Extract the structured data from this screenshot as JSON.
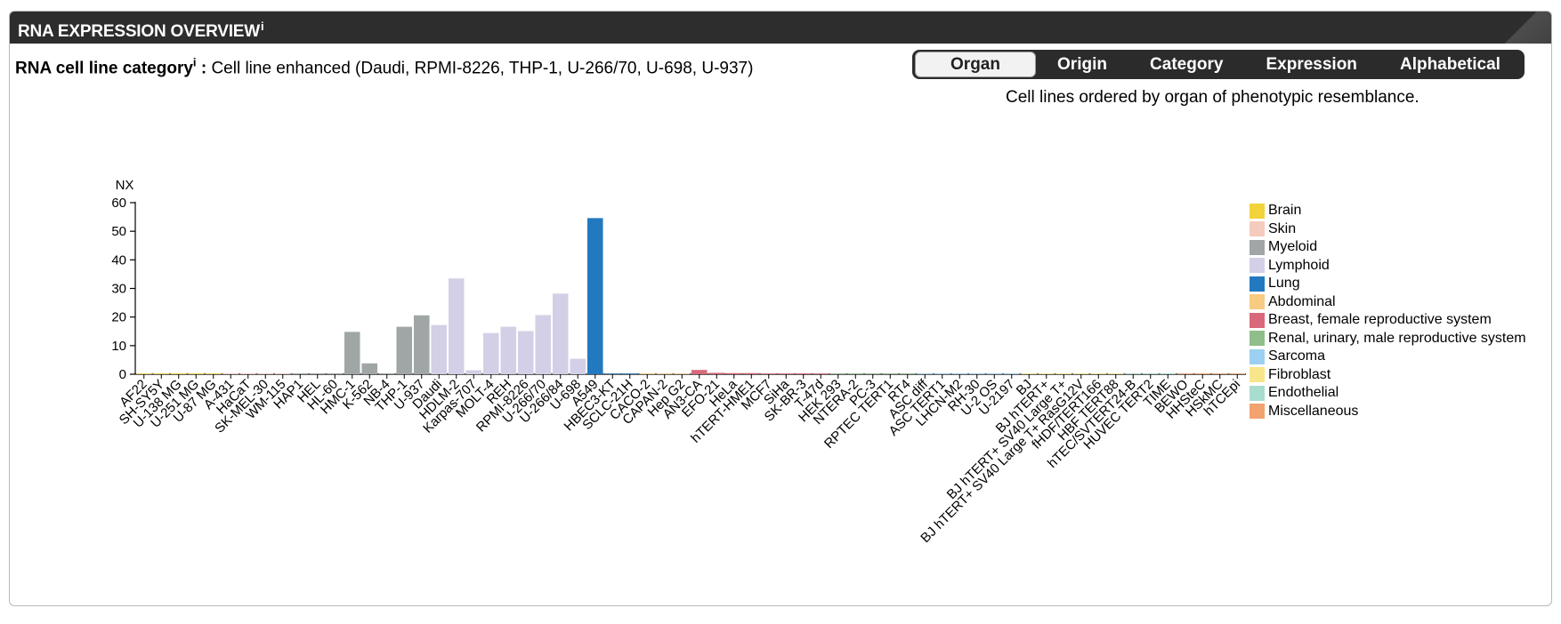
{
  "panel": {
    "title": "RNA EXPRESSION OVERVIEW",
    "title_info": "i"
  },
  "category": {
    "label": "RNA cell line category",
    "info": "i",
    "separator": " : ",
    "value": "Cell line enhanced (Daudi, RPMI-8226, THP-1, U-266/70, U-698, U-937)"
  },
  "tabs": [
    {
      "label": "Organ",
      "active": true
    },
    {
      "label": "Origin",
      "active": false
    },
    {
      "label": "Category",
      "active": false
    },
    {
      "label": "Expression",
      "active": false
    },
    {
      "label": "Alphabetical",
      "active": false
    }
  ],
  "caption": "Cell lines ordered by organ of phenotypic resemblance.",
  "legend": [
    {
      "name": "Brain",
      "color": "#f2d33a"
    },
    {
      "name": "Skin",
      "color": "#f4cbbd"
    },
    {
      "name": "Myeloid",
      "color": "#a0a6a6"
    },
    {
      "name": "Lymphoid",
      "color": "#d3cfe6"
    },
    {
      "name": "Lung",
      "color": "#2279c0"
    },
    {
      "name": "Abdominal",
      "color": "#f8cb82"
    },
    {
      "name": "Breast, female reproductive system",
      "color": "#d9687a"
    },
    {
      "name": "Renal, urinary, male reproductive system",
      "color": "#90be8a"
    },
    {
      "name": "Sarcoma",
      "color": "#9bd0f0"
    },
    {
      "name": "Fibroblast",
      "color": "#f7e68a"
    },
    {
      "name": "Endothelial",
      "color": "#a8dccf"
    },
    {
      "name": "Miscellaneous",
      "color": "#f2a26e"
    }
  ],
  "chart_data": {
    "type": "bar",
    "ylabel": "NX",
    "ylim": [
      0,
      60
    ],
    "yticks": [
      0,
      10,
      20,
      30,
      40,
      50,
      60
    ],
    "grid": false,
    "legend_position": "right",
    "categories": [
      "AF22",
      "SH-SY5Y",
      "U-138 MG",
      "U-251 MG",
      "U-87 MG",
      "A-431",
      "HaCaT",
      "SK-MEL-30",
      "WM-115",
      "HAP1",
      "HEL",
      "HL-60",
      "HMC-1",
      "K-562",
      "NB-4",
      "THP-1",
      "U-937",
      "Daudi",
      "HDLM-2",
      "Karpas-707",
      "MOLT-4",
      "REH",
      "RPMI-8226",
      "U-266/70",
      "U-266/84",
      "U-698",
      "A549",
      "HBEC3-KT",
      "SCLC-21H",
      "CACO-2",
      "CAPAN-2",
      "Hep G2",
      "AN3-CA",
      "EFO-21",
      "HeLa",
      "hTERT-HME1",
      "MCF7",
      "SiHa",
      "SK-BR-3",
      "T-47d",
      "HEK 293",
      "NTERA-2",
      "PC-3",
      "RPTEC TERT1",
      "RT4",
      "ASC diff",
      "ASC TERT1",
      "LHCN-M2",
      "RH-30",
      "U-2 OS",
      "U-2197",
      "BJ",
      "BJ hTERT+",
      "BJ hTERT+ SV40 Large T+",
      "BJ hTERT+ SV40 Large T+ RasG12V",
      "fHDF/TERT166",
      "HBF TERT88",
      "hTEC/SVTERT24-B",
      "HUVEC TERT2",
      "TIME",
      "BEWO",
      "HHSteC",
      "HSkMC",
      "hTCEpi"
    ],
    "groups": [
      "Brain",
      "Brain",
      "Brain",
      "Brain",
      "Brain",
      "Skin",
      "Skin",
      "Skin",
      "Skin",
      "Myeloid",
      "Myeloid",
      "Myeloid",
      "Myeloid",
      "Myeloid",
      "Myeloid",
      "Myeloid",
      "Myeloid",
      "Lymphoid",
      "Lymphoid",
      "Lymphoid",
      "Lymphoid",
      "Lymphoid",
      "Lymphoid",
      "Lymphoid",
      "Lymphoid",
      "Lymphoid",
      "Lung",
      "Lung",
      "Lung",
      "Abdominal",
      "Abdominal",
      "Abdominal",
      "Breast, female reproductive system",
      "Breast, female reproductive system",
      "Breast, female reproductive system",
      "Breast, female reproductive system",
      "Breast, female reproductive system",
      "Breast, female reproductive system",
      "Breast, female reproductive system",
      "Breast, female reproductive system",
      "Renal, urinary, male reproductive system",
      "Renal, urinary, male reproductive system",
      "Renal, urinary, male reproductive system",
      "Renal, urinary, male reproductive system",
      "Renal, urinary, male reproductive system",
      "Sarcoma",
      "Sarcoma",
      "Sarcoma",
      "Sarcoma",
      "Sarcoma",
      "Sarcoma",
      "Fibroblast",
      "Fibroblast",
      "Fibroblast",
      "Fibroblast",
      "Fibroblast",
      "Fibroblast",
      "Endothelial",
      "Endothelial",
      "Endothelial",
      "Miscellaneous",
      "Miscellaneous",
      "Miscellaneous",
      "Miscellaneous"
    ],
    "values": [
      0.1,
      0.1,
      0.3,
      0.3,
      0.1,
      0.1,
      0.1,
      0.1,
      0.1,
      0.1,
      0.1,
      0.1,
      14.8,
      3.8,
      0.1,
      16.6,
      20.6,
      17.2,
      33.5,
      1.4,
      14.4,
      16.6,
      15.1,
      20.7,
      28.2,
      5.4,
      54.6,
      0.1,
      0.1,
      0.1,
      0.1,
      0.2,
      1.5,
      0.5,
      0.4,
      0.4,
      0.1,
      0.1,
      0.3,
      0.1,
      0.1,
      0.1,
      0.1,
      0.2,
      0.1,
      0.1,
      0.1,
      0.1,
      0.1,
      0.2,
      0.1,
      0.1,
      0.1,
      0.1,
      0.1,
      0.1,
      0.1,
      0.1,
      0.1,
      0.1,
      0.1,
      0.3,
      0.1,
      0.1
    ]
  }
}
